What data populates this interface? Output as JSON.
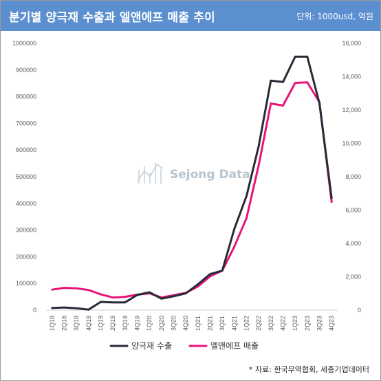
{
  "header": {
    "title": "분기별 양극재 수출과 엘앤에프 매출 추이",
    "unit": "단위: 1000usd, 억원"
  },
  "watermark": "Sejong Data",
  "source": "* 자료: 한국무역협회, 세종기업데이터",
  "colors": {
    "header_bg": "#5b8fcf",
    "series_export": "#262b36",
    "series_revenue": "#e8147a"
  },
  "chart_data": {
    "type": "line",
    "categories": [
      "1Q18",
      "2Q18",
      "3Q18",
      "4Q18",
      "1Q19",
      "2Q19",
      "3Q19",
      "4Q19",
      "1Q20",
      "2Q20",
      "3Q20",
      "4Q20",
      "1Q21",
      "2Q21",
      "3Q21",
      "4Q21",
      "1Q22",
      "2Q22",
      "3Q22",
      "4Q22",
      "1Q23",
      "2Q23",
      "3Q23",
      "4Q23"
    ],
    "y_left": {
      "min": 0,
      "max": 1000000,
      "ticks": [
        "0",
        "100000",
        "200000",
        "300000",
        "400000",
        "500000",
        "600000",
        "700000",
        "800000",
        "900000",
        "1000000"
      ]
    },
    "y_right": {
      "min": 0,
      "max": 16000,
      "ticks": [
        "0",
        "2,000",
        "4,000",
        "6,000",
        "8,000",
        "10,000",
        "12,000",
        "14,000",
        "16,000"
      ]
    },
    "grid": false,
    "legend_position": "bottom",
    "series": [
      {
        "name": "양극재 수출",
        "axis": "left",
        "values": [
          8000,
          10000,
          7000,
          2000,
          31000,
          29000,
          29000,
          57000,
          67000,
          43000,
          52000,
          63000,
          97000,
          135000,
          148000,
          305000,
          428000,
          615000,
          860000,
          855000,
          950000,
          950000,
          775000,
          420000
        ]
      },
      {
        "name": "엘앤에프 매출",
        "axis": "right",
        "values": [
          1230,
          1340,
          1310,
          1210,
          950,
          760,
          800,
          930,
          1010,
          760,
          900,
          1040,
          1420,
          2030,
          2370,
          3810,
          5530,
          8700,
          12390,
          12270,
          13630,
          13660,
          12470,
          6490
        ]
      }
    ]
  }
}
